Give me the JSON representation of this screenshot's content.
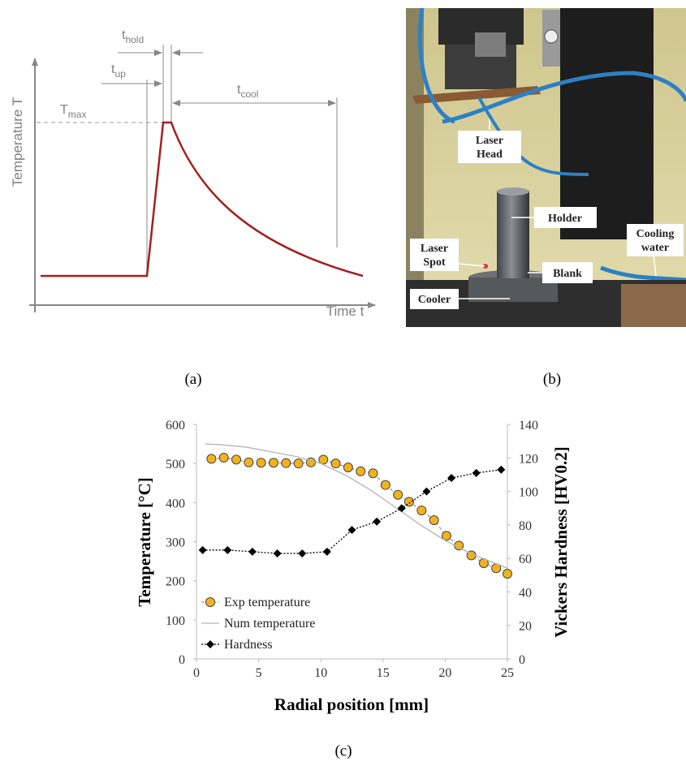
{
  "schematic": {
    "y_axis_label": "Temperature T",
    "x_axis_label": "Time t",
    "labels": {
      "t_hold": {
        "base": "t",
        "sub": "hold"
      },
      "t_up": {
        "base": "t",
        "sub": "up"
      },
      "T_max": {
        "base": "T",
        "sub": "max"
      },
      "t_cool": {
        "base": "t",
        "sub": "cool"
      }
    },
    "caption": "(a)"
  },
  "photo": {
    "labels": {
      "laser_head": [
        "Laser",
        "Head"
      ],
      "holder": [
        "Holder"
      ],
      "cooling_water": [
        "Cooling",
        "water"
      ],
      "laser_spot": [
        "Laser",
        "Spot"
      ],
      "blank": [
        "Blank"
      ],
      "cooler": [
        "Cooler"
      ]
    },
    "caption": "(b)"
  },
  "chart_data": {
    "type": "line",
    "caption": "(c)",
    "x_label": "Radial position [mm]",
    "y_label": "Temperature [°C]",
    "y2_label": "Vickers Hardness [HV0.2]",
    "xlim": [
      0,
      25
    ],
    "xticks": [
      0,
      5,
      10,
      15,
      20,
      25
    ],
    "ylim": [
      0,
      600
    ],
    "yticks": [
      0,
      100,
      200,
      300,
      400,
      500,
      600
    ],
    "y2lim": [
      0,
      140
    ],
    "y2ticks": [
      0,
      20,
      40,
      60,
      80,
      100,
      120,
      140
    ],
    "legend": "lower left",
    "series": [
      {
        "name": "Exp temperature",
        "color": "#f3b21b",
        "line_color": "#9a9a9a",
        "line_style": "dashed",
        "marker": "circle",
        "x": [
          1.2,
          2.2,
          3.2,
          4.2,
          5.2,
          6.2,
          7.2,
          8.2,
          9.2,
          10.2,
          11.2,
          12.2,
          13.2,
          14.2,
          15.2,
          16.2,
          17.1,
          18.1,
          19.1,
          20.1,
          21.1,
          22.1,
          23.1,
          24.1,
          25.0
        ],
        "values": [
          512,
          515,
          510,
          503,
          502,
          502,
          501,
          500,
          503,
          510,
          500,
          490,
          480,
          475,
          445,
          420,
          402,
          380,
          355,
          315,
          290,
          265,
          245,
          232,
          218
        ]
      },
      {
        "name": "Num temperature",
        "color": "#b4b4b4",
        "line_color": "#b4b4b4",
        "line_style": "solid",
        "marker": "none",
        "x": [
          0.7,
          2,
          4,
          6,
          8,
          10,
          12,
          14,
          16,
          18,
          20,
          22,
          24,
          25
        ],
        "values": [
          550,
          548,
          542,
          530,
          518,
          500,
          470,
          432,
          388,
          343,
          303,
          270,
          245,
          232
        ]
      },
      {
        "name": "Hardness",
        "color": "#000000",
        "line_color": "#000000",
        "line_style": "dotted",
        "marker": "diamond",
        "axis": "y2",
        "x": [
          0.5,
          2.5,
          4.5,
          6.5,
          8.5,
          10.5,
          12.5,
          14.5,
          16.5,
          18.5,
          20.5,
          22.5,
          24.5
        ],
        "values": [
          65,
          65,
          64,
          63,
          63,
          64,
          77,
          82,
          90,
          100,
          108,
          111,
          113
        ]
      }
    ]
  }
}
